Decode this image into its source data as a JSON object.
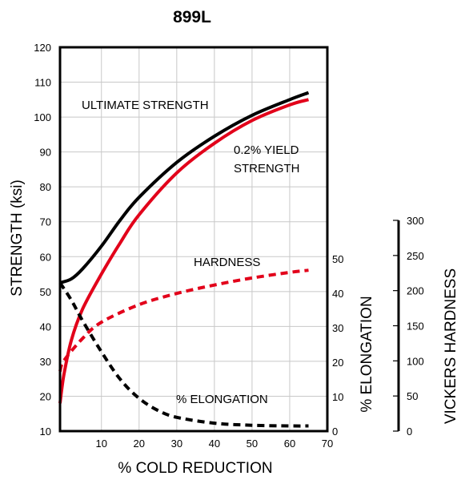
{
  "chart_data": {
    "type": "line",
    "title": "899L",
    "xlabel": "% COLD REDUCTION",
    "ylabel": "STRENGTH (ksi)",
    "y2label": "% ELONGATION",
    "y3label": "VICKERS HARDNESS",
    "xlim": [
      -1,
      70
    ],
    "ylim": [
      10,
      120
    ],
    "y2lim": [
      0,
      56
    ],
    "y3lim": [
      0,
      300
    ],
    "x_ticks": [
      "10",
      "20",
      "30",
      "40",
      "50",
      "60",
      "70"
    ],
    "y_ticks": [
      "10",
      "20",
      "30",
      "40",
      "50",
      "60",
      "70",
      "80",
      "90",
      "100",
      "110",
      "120"
    ],
    "y2_ticks": [
      "0",
      "10",
      "20",
      "30",
      "40",
      "50"
    ],
    "y3_ticks": [
      "0",
      "50",
      "100",
      "150",
      "200",
      "250",
      "300"
    ],
    "grid": true,
    "annotations": {
      "ultimate": "ULTIMATE STRENGTH",
      "yield_line1": "0.2% YIELD",
      "yield_line2": "STRENGTH",
      "hardness": "HARDNESS",
      "elongation": "% ELONGATION"
    },
    "series": [
      {
        "name": "ULTIMATE STRENGTH",
        "axis": "strength",
        "color": "#000000",
        "style": "solid",
        "x": [
          -1,
          2,
          5,
          10,
          15,
          20,
          30,
          40,
          50,
          60,
          65
        ],
        "y": [
          52.5,
          53.6,
          56.5,
          63,
          70.5,
          77,
          87,
          94.5,
          100.5,
          105,
          107
        ]
      },
      {
        "name": "0.2% YIELD STRENGTH",
        "axis": "strength",
        "color": "#e2001a",
        "style": "solid",
        "x": [
          -1,
          0,
          2,
          5,
          10,
          15,
          20,
          30,
          40,
          50,
          60,
          65
        ],
        "y": [
          18,
          26,
          36,
          45,
          55,
          64,
          72,
          84,
          92.5,
          99,
          103.5,
          105
        ]
      },
      {
        "name": "HARDNESS",
        "axis": "vickers",
        "color": "#e2001a",
        "style": "dashed",
        "x": [
          -1,
          0,
          5,
          10,
          20,
          30,
          40,
          50,
          60,
          65
        ],
        "y": [
          85,
          100,
          132,
          155,
          180,
          196,
          208,
          218,
          226,
          229
        ]
      },
      {
        "name": "% ELONGATION",
        "axis": "elongation",
        "color": "#000000",
        "style": "dashed",
        "x": [
          -1,
          2,
          5,
          10,
          15,
          20,
          25,
          30,
          40,
          50,
          60,
          65
        ],
        "y": [
          43,
          38,
          32,
          23,
          15,
          9.5,
          6,
          4,
          2.3,
          1.7,
          1.5,
          1.5
        ]
      }
    ]
  }
}
